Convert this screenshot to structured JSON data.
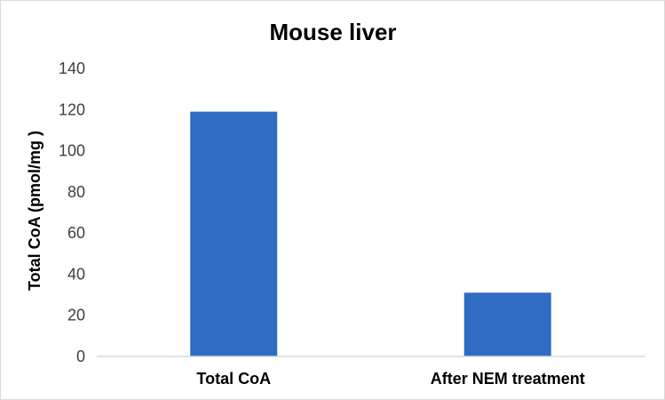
{
  "chart_data": {
    "type": "bar",
    "title": "Mouse liver",
    "xlabel": "",
    "ylabel": "Total CoA (pmol/mg )",
    "categories": [
      "Total CoA",
      "After NEM treatment"
    ],
    "values": [
      119,
      31
    ],
    "ylim": [
      0,
      140
    ],
    "yticks": [
      0,
      20,
      40,
      60,
      80,
      100,
      120,
      140
    ],
    "grid": false,
    "legend": "none",
    "bar_color": "#2f6cc4",
    "axis_color": "#d9d9d9"
  }
}
